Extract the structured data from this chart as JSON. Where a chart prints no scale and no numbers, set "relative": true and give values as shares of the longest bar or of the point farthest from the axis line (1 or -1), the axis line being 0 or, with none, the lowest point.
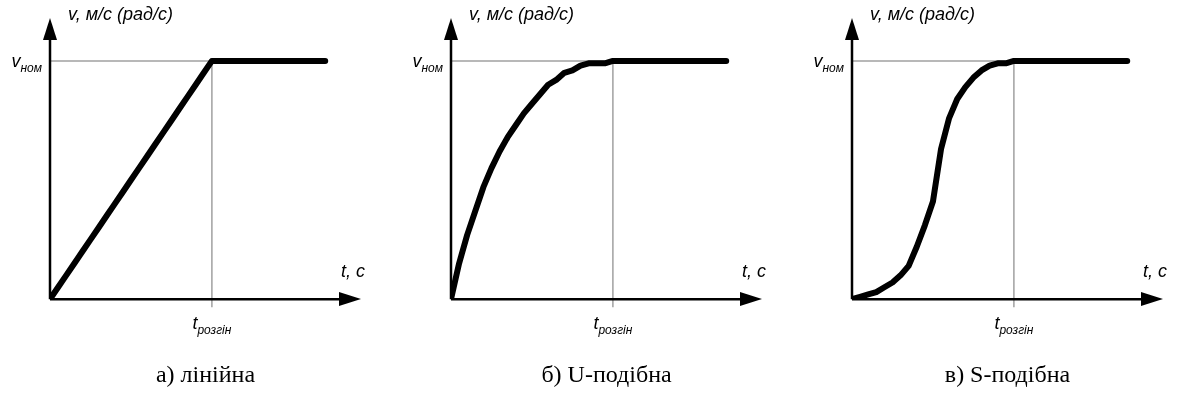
{
  "chart_data": [
    {
      "type": "line",
      "title": "а) лінійна",
      "xlabel": "t, с",
      "ylabel": "v, м/с (рад/с)",
      "relative": true,
      "categories": [
        null,
        null,
        null,
        null,
        null,
        null,
        null,
        null,
        null,
        null,
        null,
        null,
        null,
        null,
        null,
        null,
        null,
        null,
        null,
        null,
        null,
        null,
        null,
        null,
        null,
        null,
        null,
        null,
        null,
        null,
        null,
        null,
        null,
        null,
        null
      ],
      "values": [
        0,
        0.05,
        0.1,
        0.15,
        0.2,
        0.25,
        0.3,
        0.35,
        0.4,
        0.45,
        0.5,
        0.55,
        0.6,
        0.65,
        0.7,
        0.75,
        0.8,
        0.85,
        0.9,
        0.95,
        1,
        1,
        1,
        1,
        1,
        1,
        1,
        1,
        1,
        1,
        1,
        1,
        1,
        1,
        1
      ],
      "color": "#000000",
      "ref_lines": [
        {
          "axis": "y",
          "value": 1,
          "label": "v$_{ном}$",
          "color": "#a0a0a0"
        }
      ],
      "annotations": [
        "t$_{розгін}$"
      ],
      "grid": false,
      "legend": false,
      "marker": "none",
      "line_style": "solid"
    },
    {
      "type": "line",
      "title": "б) U-подібна",
      "xlabel": "t, с",
      "ylabel": "v, м/с (рад/с)",
      "relative": true,
      "categories": [
        null,
        null,
        null,
        null,
        null,
        null,
        null,
        null,
        null,
        null,
        null,
        null,
        null,
        null,
        null,
        null,
        null,
        null,
        null,
        null,
        null,
        null,
        null,
        null,
        null,
        null,
        null,
        null,
        null,
        null,
        null,
        null,
        null,
        null,
        null
      ],
      "values": [
        0,
        0.15,
        0.27,
        0.37,
        0.47,
        0.55,
        0.62,
        0.68,
        0.73,
        0.78,
        0.82,
        0.86,
        0.9,
        0.92,
        0.95,
        0.96,
        0.98,
        0.99,
        0.99,
        0.99,
        1,
        1,
        1,
        1,
        1,
        1,
        1,
        1,
        1,
        1,
        1,
        1,
        1,
        1,
        1
      ],
      "color": "#000000",
      "ref_lines": [
        {
          "axis": "y",
          "value": 1,
          "label": "v$_{ном}$",
          "color": "#a0a0a0"
        }
      ],
      "annotations": [
        "t$_{розгін}$"
      ],
      "grid": false,
      "legend": false,
      "marker": "none",
      "line_style": "solid"
    },
    {
      "type": "line",
      "title": "в) S-подібна",
      "xlabel": "t, с",
      "ylabel": "v, м/с (рад/с)",
      "relative": true,
      "categories": [
        null,
        null,
        null,
        null,
        null,
        null,
        null,
        null,
        null,
        null,
        null,
        null,
        null,
        null,
        null,
        null,
        null,
        null,
        null,
        null,
        null,
        null,
        null,
        null,
        null,
        null,
        null,
        null,
        null,
        null,
        null,
        null,
        null,
        null,
        null
      ],
      "values": [
        0,
        0.01,
        0.02,
        0.03,
        0.05,
        0.07,
        0.1,
        0.14,
        0.22,
        0.31,
        0.41,
        0.63,
        0.76,
        0.84,
        0.89,
        0.93,
        0.96,
        0.98,
        0.99,
        0.99,
        1,
        1,
        1,
        1,
        1,
        1,
        1,
        1,
        1,
        1,
        1,
        1,
        1,
        1,
        1
      ],
      "color": "#000000",
      "ref_lines": [
        {
          "axis": "y",
          "value": 1,
          "label": "v$_{ном}$",
          "color": "#a0a0a0"
        }
      ],
      "annotations": [
        "t$_{розгін}$"
      ],
      "grid": false,
      "legend": false,
      "marker": "none",
      "line_style": "solid"
    }
  ]
}
